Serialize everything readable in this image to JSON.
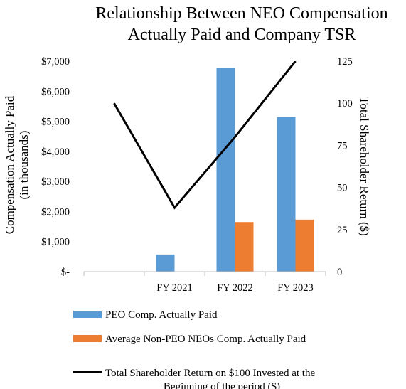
{
  "chart_data": {
    "type": "bar",
    "title_lines": [
      "Relationship Between NEO Compensation",
      "Actually Paid and Company TSR"
    ],
    "categories": [
      "",
      "FY 2021",
      "FY 2022",
      "FY 2023"
    ],
    "ylabel_lines": [
      "Compensation Actually Paid",
      "(in thousands)"
    ],
    "y2label": "Total Shareholder Return ($)",
    "ylim": [
      0,
      7000
    ],
    "y2lim": [
      0,
      125
    ],
    "yticks": [
      0,
      1000,
      2000,
      3000,
      4000,
      5000,
      6000,
      7000
    ],
    "ytick_labels": [
      "$-",
      "$1,000",
      "$2,000",
      "$3,000",
      "$4,000",
      "$5,000",
      "$6,000",
      "$7,000"
    ],
    "y2ticks": [
      0,
      25,
      50,
      75,
      100,
      125
    ],
    "y2tick_labels": [
      "0",
      "25",
      "50",
      "75",
      "100",
      "125"
    ],
    "grid": false,
    "legend_position": "bottom",
    "series": [
      {
        "name": "PEO Comp. Actually Paid",
        "type": "bar",
        "axis": "left",
        "color": "#5b9bd5",
        "values": [
          null,
          570,
          6770,
          5140
        ]
      },
      {
        "name": "Average Non-PEO NEOs Comp. Actually Paid",
        "type": "bar",
        "axis": "left",
        "color": "#ed7d31",
        "values": [
          null,
          null,
          1650,
          1730
        ]
      },
      {
        "name_lines": [
          "Total Shareholder Return  on $100 Invested at the",
          "Beginning of the period ($)"
        ],
        "type": "line",
        "axis": "right",
        "color": "#000000",
        "values": [
          100,
          38,
          80,
          125
        ]
      }
    ]
  }
}
